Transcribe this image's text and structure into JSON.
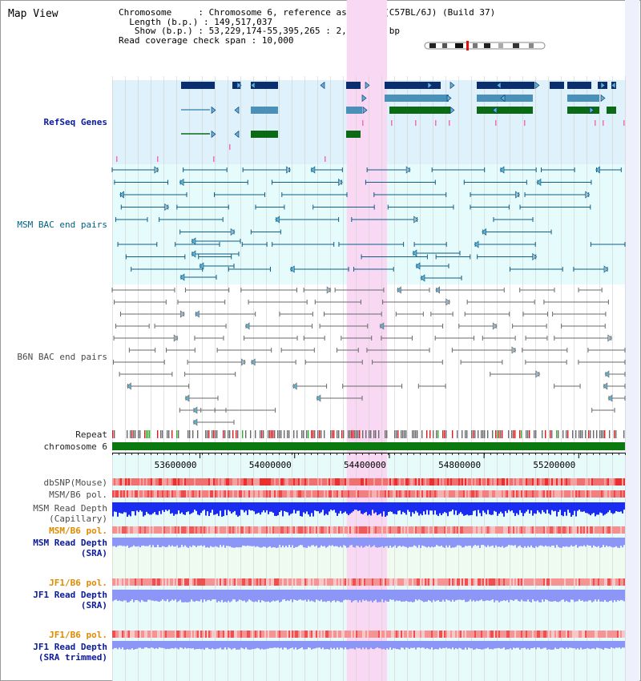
{
  "app": {
    "title": "Map View"
  },
  "header": {
    "lines": [
      "Chromosome     : Chromosome 6, reference assembly (C57BL/6J) (Build 37)",
      "  Length (b.p.) : 149,517,037",
      "   Show (b.p.) : 53,229,174-55,395,265 : 2,166,092 bp",
      "Read coverage check span : 10,000"
    ]
  },
  "axis": {
    "start": 53229174,
    "end": 55395265,
    "ticks": [
      "53600000",
      "54000000",
      "54400000",
      "54800000",
      "55200000"
    ],
    "tick_values": [
      53600000,
      54000000,
      54400000,
      54800000,
      55200000
    ]
  },
  "highlight": {
    "start": 54220000,
    "end": 54390000
  },
  "tracks": {
    "refseq": {
      "label": "RefSeq Genes"
    },
    "msm_bac": {
      "label": "MSM BAC end pairs"
    },
    "b6n_bac": {
      "label": "B6N BAC end pairs"
    },
    "repeat": {
      "label": "Repeat"
    },
    "chromosome": {
      "label": "chromosome 6"
    },
    "dbsnp": {
      "label": "dbSNP(Mouse)"
    },
    "msm_b6_pol_1": {
      "label": "MSM/B6 pol."
    },
    "msm_read_depth_cap": {
      "label_line1": "MSM Read Depth",
      "label_line2": "(Capillary)"
    },
    "msm_b6_pol_2": {
      "label": "MSM/B6 pol."
    },
    "msm_read_depth_sra": {
      "label_line1": "MSM Read Depth",
      "label_line2": "(SRA)"
    },
    "jf1_b6_pol_1": {
      "label": "JF1/B6 pol."
    },
    "jf1_read_depth_sra": {
      "label_line1": "JF1 Read Depth",
      "label_line2": "(SRA)"
    },
    "jf1_b6_pol_2": {
      "label": "JF1/B6 pol."
    },
    "jf1_read_depth_trim": {
      "label_line1": "JF1 Read Depth",
      "label_line2": "(SRA trimmed)"
    }
  },
  "colors": {
    "refseq_bg": "#dff1fb",
    "msm_bac_bg": "#e6fbfb",
    "highlight": "#f8d8f2",
    "gene_dark": "#0b2e6e",
    "gene_mid": "#4a90b8",
    "gene_green": "#0a6a16",
    "bac_teal": "#0c5e86",
    "bac_gray": "#6a6a6a",
    "chromosome": "#0a7a10",
    "snp_red": "#e83030",
    "depth_blue": "#1a2cf0",
    "depth_light": "#8c96f6",
    "sra_bg": "#eefbee"
  }
}
